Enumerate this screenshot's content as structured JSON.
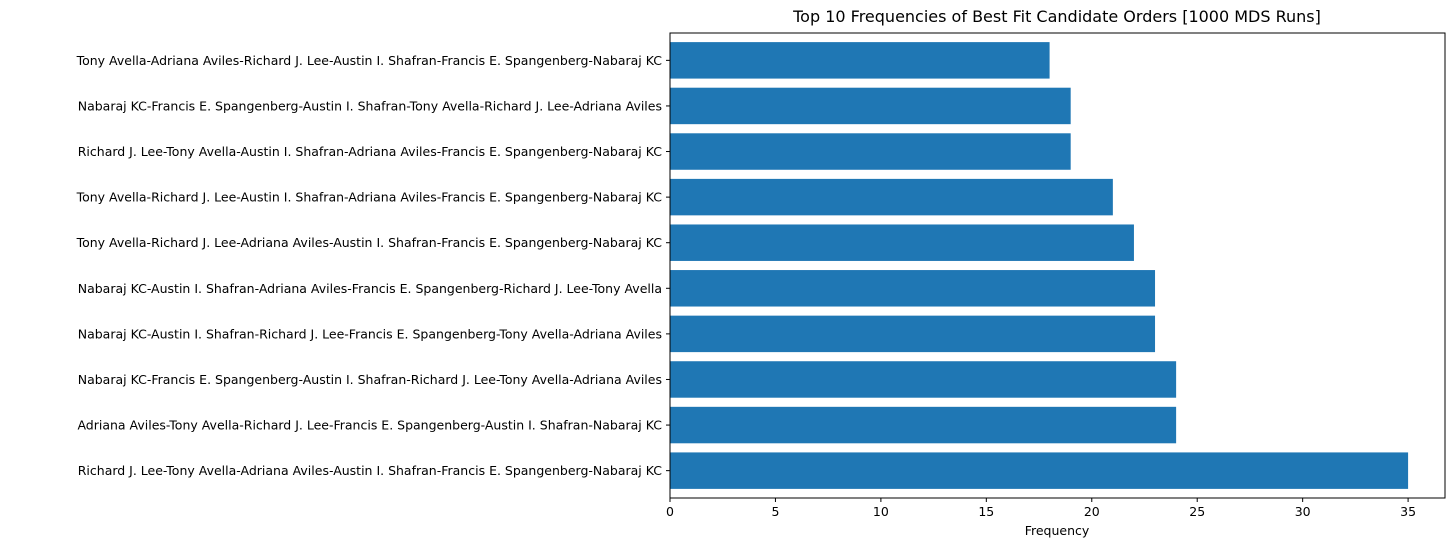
{
  "chart_data": {
    "type": "bar",
    "orientation": "horizontal",
    "title": "Top 10 Frequencies of Best Fit Candidate Orders [1000 MDS Runs]",
    "xlabel": "Frequency",
    "ylabel": "",
    "xlim": [
      0,
      36.75
    ],
    "xticks": [
      0,
      5,
      10,
      15,
      20,
      25,
      30,
      35
    ],
    "bar_color": "#1f77b4",
    "grid": false,
    "categories": [
      "Richard J. Lee-Tony Avella-Adriana Aviles-Austin I. Shafran-Francis E. Spangenberg-Nabaraj KC",
      "Adriana Aviles-Tony Avella-Richard J. Lee-Francis E. Spangenberg-Austin I. Shafran-Nabaraj KC",
      "Nabaraj KC-Francis E. Spangenberg-Austin I. Shafran-Richard J. Lee-Tony Avella-Adriana Aviles",
      "Nabaraj KC-Austin I. Shafran-Richard J. Lee-Francis E. Spangenberg-Tony Avella-Adriana Aviles",
      "Nabaraj KC-Austin I. Shafran-Adriana Aviles-Francis E. Spangenberg-Richard J. Lee-Tony Avella",
      "Tony Avella-Richard J. Lee-Adriana Aviles-Austin I. Shafran-Francis E. Spangenberg-Nabaraj KC",
      "Tony Avella-Richard J. Lee-Austin I. Shafran-Adriana Aviles-Francis E. Spangenberg-Nabaraj KC",
      "Richard J. Lee-Tony Avella-Austin I. Shafran-Adriana Aviles-Francis E. Spangenberg-Nabaraj KC",
      "Nabaraj KC-Francis E. Spangenberg-Austin I. Shafran-Tony Avella-Richard J. Lee-Adriana Aviles",
      "Tony Avella-Adriana Aviles-Richard J. Lee-Austin I. Shafran-Francis E. Spangenberg-Nabaraj KC"
    ],
    "values": [
      35,
      24,
      24,
      23,
      23,
      22,
      21,
      19,
      19,
      18
    ]
  }
}
